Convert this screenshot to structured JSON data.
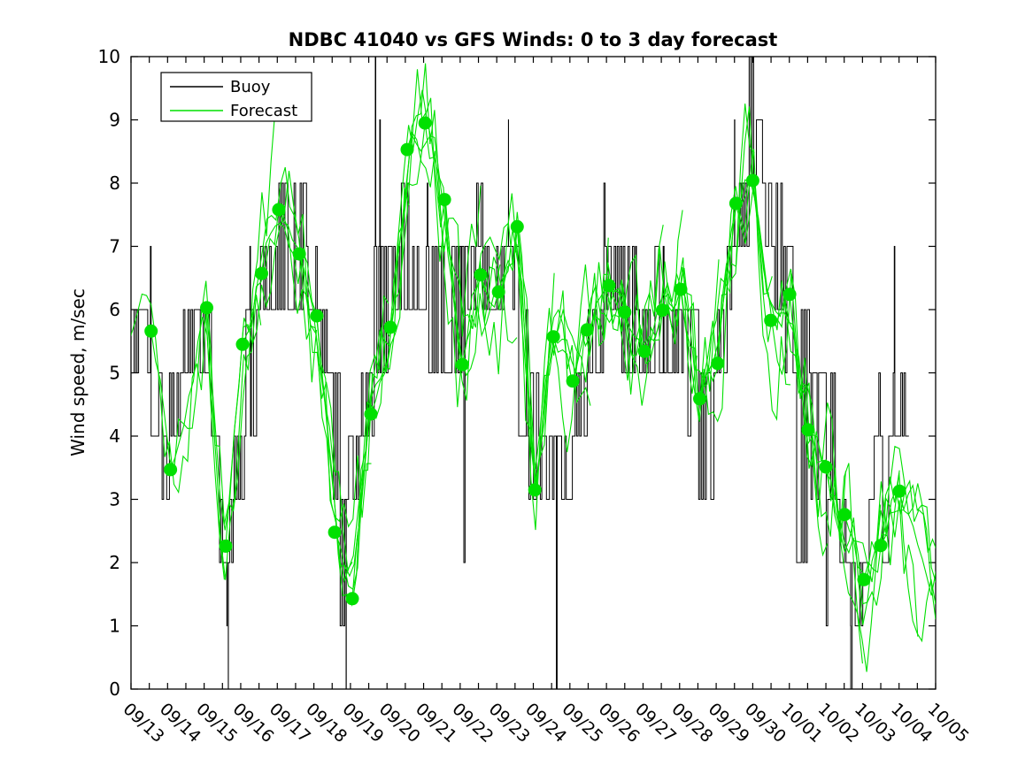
{
  "figure": {
    "background": "#ffffff"
  },
  "chart_data": {
    "type": "line",
    "title": "NDBC 41040 vs GFS Winds: 0 to 3 day forecast",
    "ylabel": "Wind speed, m/sec",
    "ylim": [
      0,
      10
    ],
    "yticks": [
      0,
      1,
      2,
      3,
      4,
      5,
      6,
      7,
      8,
      9,
      10
    ],
    "xtick_labels": [
      "09/13",
      "09/14",
      "09/15",
      "09/16",
      "09/17",
      "09/18",
      "09/19",
      "09/20",
      "09/21",
      "09/22",
      "09/23",
      "09/24",
      "09/25",
      "09/26",
      "09/27",
      "09/28",
      "09/29",
      "09/30",
      "10/01",
      "10/02",
      "10/03",
      "10/04",
      "10/05"
    ],
    "x_span_days": 22,
    "x_minor_tick_days": 0.5,
    "grid": "off",
    "legend": {
      "position": "top-left",
      "entries": [
        {
          "label": "Buoy",
          "color": "#000000"
        },
        {
          "label": "Forecast",
          "color": "#00e000"
        }
      ]
    },
    "series_colors": {
      "buoy": "#000000",
      "forecast": "#00e000"
    },
    "buoy_oscillation_bands": [
      [
        0,
        0.55,
        5,
        6
      ],
      [
        0.55,
        0.85,
        4,
        5
      ],
      [
        0.85,
        1.05,
        3,
        4
      ],
      [
        1.05,
        1.35,
        4,
        5
      ],
      [
        1.35,
        2.2,
        5,
        6
      ],
      [
        2.2,
        2.42,
        3,
        4
      ],
      [
        2.42,
        2.82,
        2,
        3
      ],
      [
        2.82,
        3.1,
        3,
        4
      ],
      [
        3.1,
        3.5,
        4,
        6
      ],
      [
        3.5,
        4,
        6,
        7
      ],
      [
        4,
        4.8,
        6,
        8
      ],
      [
        4.8,
        5.2,
        6,
        7
      ],
      [
        5.2,
        5.45,
        5,
        6
      ],
      [
        5.45,
        5.72,
        3,
        5
      ],
      [
        5.72,
        5.95,
        1,
        3
      ],
      [
        5.95,
        6.3,
        3,
        4
      ],
      [
        6.3,
        6.65,
        4,
        5
      ],
      [
        6.65,
        7.1,
        5,
        7
      ],
      [
        7.1,
        7.35,
        6,
        7
      ],
      [
        7.35,
        7.7,
        6,
        8
      ],
      [
        7.7,
        8.15,
        6,
        7
      ],
      [
        8.15,
        9.05,
        5,
        7
      ],
      [
        9.05,
        9.45,
        6,
        7
      ],
      [
        9.45,
        9.62,
        7,
        8
      ],
      [
        9.62,
        10.28,
        6,
        7
      ],
      [
        10.28,
        10.6,
        6,
        7
      ],
      [
        10.6,
        10.88,
        4,
        6
      ],
      [
        10.88,
        11.15,
        3,
        5
      ],
      [
        11.15,
        12.1,
        3,
        4
      ],
      [
        12.1,
        12.5,
        4,
        5
      ],
      [
        12.5,
        12.92,
        5,
        6
      ],
      [
        12.92,
        13.42,
        6,
        7
      ],
      [
        13.42,
        13.82,
        5,
        7
      ],
      [
        13.82,
        14.2,
        5,
        6
      ],
      [
        14.2,
        14.6,
        5,
        7
      ],
      [
        14.6,
        15.1,
        5,
        6
      ],
      [
        15.1,
        15.52,
        4,
        6
      ],
      [
        15.52,
        16,
        3,
        5
      ],
      [
        16,
        16.3,
        5,
        6
      ],
      [
        16.3,
        16.55,
        6,
        7
      ],
      [
        16.55,
        16.9,
        7,
        8
      ],
      [
        16.9,
        17.1,
        8,
        10
      ],
      [
        17.1,
        17.35,
        8,
        9
      ],
      [
        17.35,
        17.6,
        7,
        8
      ],
      [
        17.6,
        17.85,
        6,
        8
      ],
      [
        17.85,
        18.2,
        5,
        7
      ],
      [
        18.2,
        18.55,
        2,
        6
      ],
      [
        18.55,
        18.8,
        3,
        5
      ],
      [
        18.8,
        19.05,
        1,
        5
      ],
      [
        19.05,
        19.3,
        3,
        5
      ],
      [
        19.3,
        19.55,
        2,
        3
      ],
      [
        19.55,
        20.1,
        1,
        2
      ],
      [
        20.1,
        20.32,
        2,
        3
      ],
      [
        20.32,
        20.55,
        4,
        5
      ],
      [
        20.55,
        20.8,
        2,
        4
      ],
      [
        20.8,
        21.27,
        4,
        5
      ]
    ],
    "buoy_spikes": [
      [
        0.53,
        7
      ],
      [
        2.62,
        1
      ],
      [
        2.66,
        0
      ],
      [
        3.25,
        7
      ],
      [
        5.88,
        0
      ],
      [
        6.68,
        10
      ],
      [
        6.8,
        9
      ],
      [
        8.1,
        8
      ],
      [
        9.1,
        2
      ],
      [
        10.32,
        9
      ],
      [
        11.63,
        0
      ],
      [
        12.93,
        8
      ],
      [
        14.55,
        7
      ],
      [
        16.5,
        9
      ],
      [
        17.02,
        10
      ],
      [
        19.68,
        0
      ],
      [
        20.87,
        7
      ]
    ],
    "forecast_markers": [
      [
        0.55,
        5.66
      ],
      [
        1.08,
        3.47
      ],
      [
        2.07,
        6.03
      ],
      [
        2.59,
        2.26
      ],
      [
        3.05,
        5.45
      ],
      [
        3.57,
        6.57
      ],
      [
        4.04,
        7.58
      ],
      [
        4.6,
        6.88
      ],
      [
        5.08,
        5.9
      ],
      [
        5.57,
        2.48
      ],
      [
        6.05,
        1.43
      ],
      [
        6.56,
        4.35
      ],
      [
        7.09,
        5.72
      ],
      [
        7.55,
        8.53
      ],
      [
        8.04,
        8.95
      ],
      [
        8.57,
        7.74
      ],
      [
        9.06,
        5.13
      ],
      [
        9.56,
        6.55
      ],
      [
        10.05,
        6.28
      ],
      [
        10.56,
        7.31
      ],
      [
        11.04,
        3.15
      ],
      [
        11.55,
        5.57
      ],
      [
        12.08,
        4.87
      ],
      [
        12.47,
        5.68
      ],
      [
        13.07,
        6.38
      ],
      [
        13.5,
        5.96
      ],
      [
        14.04,
        5.34
      ],
      [
        14.53,
        5.99
      ],
      [
        15.03,
        6.32
      ],
      [
        15.55,
        4.59
      ],
      [
        16.04,
        5.15
      ],
      [
        16.54,
        7.68
      ],
      [
        17,
        8.04
      ],
      [
        17.49,
        5.83
      ],
      [
        18.01,
        6.24
      ],
      [
        18.51,
        4.1
      ],
      [
        19,
        3.51
      ],
      [
        19.51,
        2.76
      ],
      [
        20.04,
        1.73
      ],
      [
        20.5,
        2.27
      ],
      [
        21.01,
        3.13
      ]
    ],
    "forecast_run_every_hours": 12,
    "forecast_run_length_hours": 72,
    "offplot_run_start": [
      -0.45,
      5.6
    ],
    "interp_tail": [
      22.3,
      1.2
    ]
  }
}
